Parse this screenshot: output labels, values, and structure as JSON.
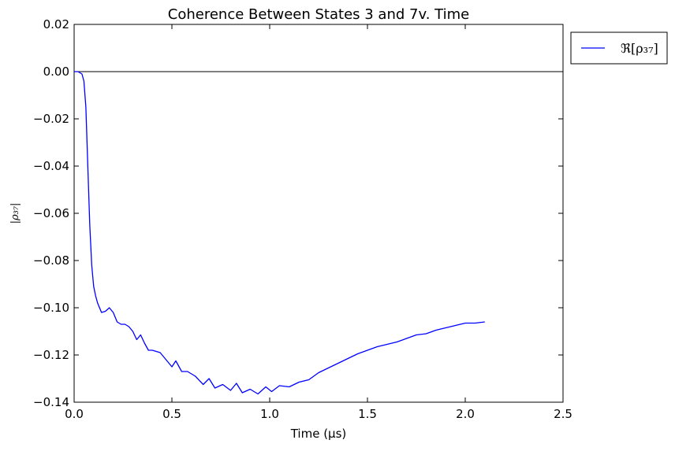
{
  "chart_data": {
    "type": "line",
    "title": "Coherence Between States 3 and 7v. Time",
    "xlabel": "Time (μs)",
    "ylabel": "|ρ₃₇|",
    "xlim": [
      0.0,
      2.5
    ],
    "ylim": [
      -0.14,
      0.02
    ],
    "x_ticks": [
      "0.0",
      "0.5",
      "1.0",
      "1.5",
      "2.0",
      "2.5"
    ],
    "y_ticks": [
      "0.02",
      "0.00",
      "−0.02",
      "−0.04",
      "−0.06",
      "−0.08",
      "−0.10",
      "−0.12",
      "−0.14"
    ],
    "grid": false,
    "zero_line": true,
    "legend": {
      "position": "outside-top-right",
      "entries": [
        "ℜ[ρ₃₇]"
      ]
    },
    "series": [
      {
        "name": "ℜ[ρ₃₇]",
        "color": "#0000ff",
        "x": [
          0.0,
          0.02,
          0.04,
          0.05,
          0.06,
          0.07,
          0.08,
          0.09,
          0.1,
          0.11,
          0.12,
          0.14,
          0.16,
          0.18,
          0.2,
          0.22,
          0.24,
          0.26,
          0.28,
          0.3,
          0.32,
          0.34,
          0.36,
          0.38,
          0.4,
          0.44,
          0.47,
          0.5,
          0.52,
          0.55,
          0.58,
          0.62,
          0.66,
          0.69,
          0.72,
          0.76,
          0.8,
          0.83,
          0.86,
          0.9,
          0.94,
          0.98,
          1.01,
          1.05,
          1.1,
          1.15,
          1.2,
          1.25,
          1.3,
          1.35,
          1.4,
          1.45,
          1.5,
          1.55,
          1.6,
          1.65,
          1.7,
          1.75,
          1.8,
          1.85,
          1.9,
          1.95,
          2.0,
          2.05,
          2.1
        ],
        "y": [
          0.0,
          0.0,
          -0.001,
          -0.004,
          -0.015,
          -0.04,
          -0.065,
          -0.082,
          -0.091,
          -0.095,
          -0.098,
          -0.102,
          -0.1015,
          -0.1,
          -0.102,
          -0.106,
          -0.107,
          -0.107,
          -0.108,
          -0.11,
          -0.1135,
          -0.1115,
          -0.115,
          -0.118,
          -0.118,
          -0.119,
          -0.122,
          -0.125,
          -0.1225,
          -0.127,
          -0.127,
          -0.129,
          -0.1325,
          -0.13,
          -0.134,
          -0.1325,
          -0.135,
          -0.132,
          -0.136,
          -0.1345,
          -0.1365,
          -0.1335,
          -0.1355,
          -0.133,
          -0.1335,
          -0.1315,
          -0.1305,
          -0.1275,
          -0.1255,
          -0.1235,
          -0.1215,
          -0.1195,
          -0.118,
          -0.1165,
          -0.1155,
          -0.1145,
          -0.113,
          -0.1115,
          -0.111,
          -0.1095,
          -0.1085,
          -0.1075,
          -0.1065,
          -0.1065,
          -0.106
        ]
      }
    ]
  }
}
